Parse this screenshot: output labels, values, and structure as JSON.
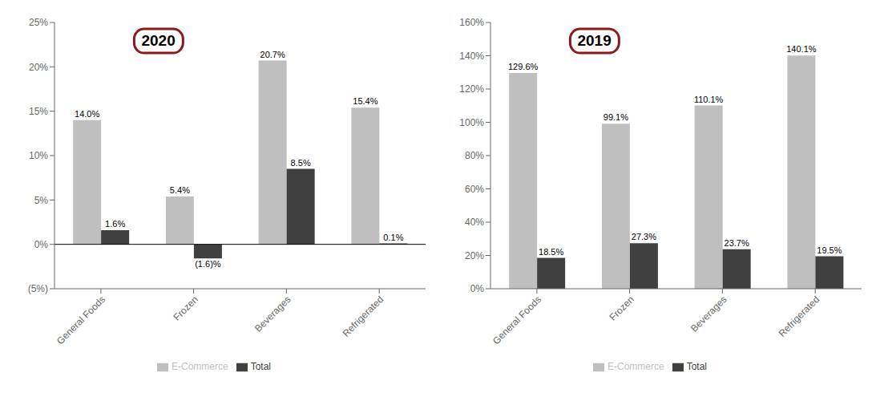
{
  "chart_data": [
    {
      "type": "bar",
      "annotations": [
        {
          "text": "2020",
          "color": "#8B1A1A"
        }
      ],
      "categories": [
        "General Foods",
        "Frozen",
        "Beverages",
        "Refrigerated"
      ],
      "series": [
        {
          "name": "E-Commerce",
          "color": "#BFBFBF",
          "values": [
            14.0,
            5.4,
            20.7,
            15.4
          ],
          "value_labels": [
            "14.0%",
            "5.4%",
            "20.7%",
            "15.4%"
          ]
        },
        {
          "name": "Total",
          "color": "#404040",
          "values": [
            1.6,
            -1.6,
            8.5,
            0.1
          ],
          "value_labels": [
            "1.6%",
            "(1.6)%",
            "8.5%",
            "0.1%"
          ]
        }
      ],
      "ylim": [
        -5,
        25
      ],
      "yticks": [
        {
          "value": -5,
          "label": "(5%)"
        },
        {
          "value": 0,
          "label": "0%"
        },
        {
          "value": 5,
          "label": "5%"
        },
        {
          "value": 10,
          "label": "10%"
        },
        {
          "value": 15,
          "label": "15%"
        },
        {
          "value": 20,
          "label": "20%"
        },
        {
          "value": 25,
          "label": "25%"
        }
      ],
      "grid": false,
      "data_labels": true,
      "legend": "bottom"
    },
    {
      "type": "bar",
      "annotations": [
        {
          "text": "2019",
          "color": "#8B1A1A"
        }
      ],
      "categories": [
        "General Foods",
        "Frozen",
        "Beverages",
        "Refrigerated"
      ],
      "series": [
        {
          "name": "E-Commerce",
          "color": "#BFBFBF",
          "values": [
            129.6,
            99.1,
            110.1,
            140.1
          ],
          "value_labels": [
            "129.6%",
            "99.1%",
            "110.1%",
            "140.1%"
          ]
        },
        {
          "name": "Total",
          "color": "#404040",
          "values": [
            18.5,
            27.3,
            23.7,
            19.5
          ],
          "value_labels": [
            "18.5%",
            "27.3%",
            "23.7%",
            "19.5%"
          ]
        }
      ],
      "ylim": [
        0,
        160
      ],
      "yticks": [
        {
          "value": 0,
          "label": "0%"
        },
        {
          "value": 20,
          "label": "20%"
        },
        {
          "value": 40,
          "label": "40%"
        },
        {
          "value": 60,
          "label": "60%"
        },
        {
          "value": 80,
          "label": "80%"
        },
        {
          "value": 100,
          "label": "100%"
        },
        {
          "value": 120,
          "label": "120%"
        },
        {
          "value": 140,
          "label": "140%"
        },
        {
          "value": 160,
          "label": "160%"
        }
      ],
      "grid": false,
      "data_labels": true,
      "legend": "bottom"
    }
  ]
}
